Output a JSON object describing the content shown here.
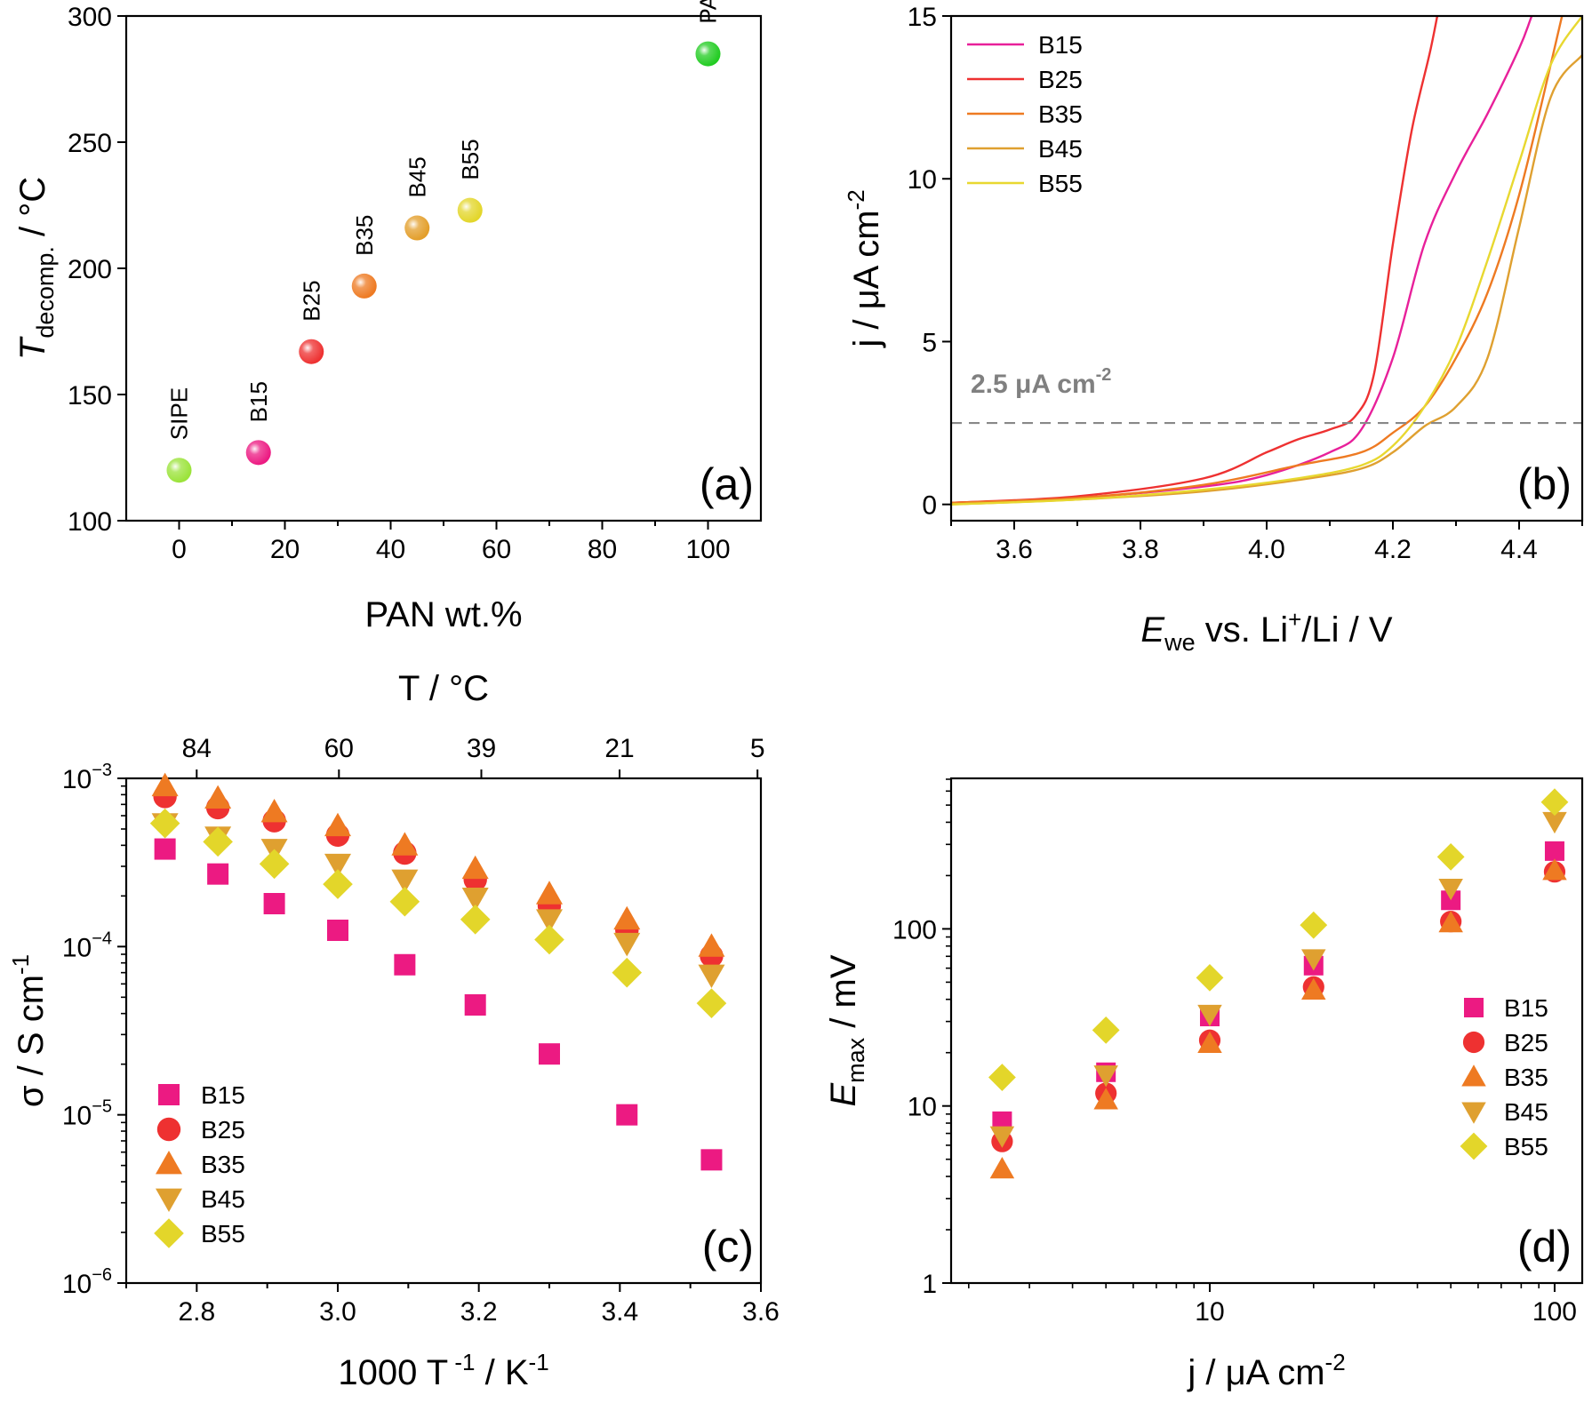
{
  "chart_data": [
    {
      "panel": "(a)",
      "type": "scatter",
      "xlabel": "PAN wt.%",
      "ylabel_main": "T",
      "ylabel_sub": "decomp.",
      "ylabel_tail": " / °C",
      "xlim": [
        -10,
        110
      ],
      "ylim": [
        100,
        300
      ],
      "xticks": [
        0,
        20,
        40,
        60,
        80,
        100
      ],
      "yticks": [
        100,
        150,
        200,
        250,
        300
      ],
      "points": [
        {
          "label": "SIPE",
          "x": 0,
          "y": 120,
          "color": "#9be33a"
        },
        {
          "label": "B15",
          "x": 15,
          "y": 127,
          "color": "#ec1a82"
        },
        {
          "label": "B25",
          "x": 25,
          "y": 167,
          "color": "#ee3131"
        },
        {
          "label": "B35",
          "x": 35,
          "y": 193,
          "color": "#ee7a22"
        },
        {
          "label": "B45",
          "x": 45,
          "y": 216,
          "color": "#e39e2a"
        },
        {
          "label": "B55",
          "x": 55,
          "y": 223,
          "color": "#e3d62a"
        },
        {
          "label": "PAN",
          "x": 100,
          "y": 285,
          "color": "#22cc22"
        }
      ]
    },
    {
      "panel": "(b)",
      "type": "line",
      "xlabel_main": "E",
      "xlabel_sub": "we",
      "xlabel_tail": " vs. Li",
      "xlabel_sup": "+",
      "xlabel_end": "/Li / V",
      "ylabel": "j / μA cm",
      "ylabel_sup": "-2",
      "xlim": [
        3.5,
        4.5
      ],
      "ylim": [
        -0.5,
        15
      ],
      "xticks": [
        3.6,
        3.8,
        4.0,
        4.2,
        4.4
      ],
      "yticks": [
        0,
        5,
        10,
        15
      ],
      "threshold": {
        "value": 2.5,
        "label": "2.5 μA cm",
        "label_sup": "-2"
      },
      "series": [
        {
          "name": "B15",
          "color": "#e8209a",
          "x": [
            3.5,
            3.7,
            3.9,
            4.0,
            4.1,
            4.15,
            4.2,
            4.25,
            4.3,
            4.35,
            4.4,
            4.42,
            4.44
          ],
          "y": [
            0.05,
            0.2,
            0.55,
            0.9,
            1.6,
            2.3,
            4.5,
            8.0,
            10.2,
            12.0,
            14.0,
            15.0,
            16.0
          ]
        },
        {
          "name": "B25",
          "color": "#ee3131",
          "x": [
            3.5,
            3.7,
            3.9,
            4.0,
            4.05,
            4.1,
            4.14,
            4.17,
            4.2,
            4.23,
            4.26,
            4.28
          ],
          "y": [
            0.05,
            0.25,
            0.8,
            1.6,
            2.0,
            2.3,
            2.7,
            4.0,
            8.0,
            11.5,
            14.0,
            16.0
          ]
        },
        {
          "name": "B35",
          "color": "#ee7a22",
          "x": [
            3.5,
            3.7,
            3.9,
            4.05,
            4.15,
            4.2,
            4.25,
            4.3,
            4.35,
            4.4,
            4.45,
            4.48
          ],
          "y": [
            0.05,
            0.2,
            0.6,
            1.2,
            1.6,
            2.2,
            3.0,
            4.5,
            6.5,
            9.5,
            13.5,
            16.0
          ]
        },
        {
          "name": "B45",
          "color": "#dfa030",
          "x": [
            3.5,
            3.7,
            3.9,
            4.05,
            4.15,
            4.2,
            4.25,
            4.3,
            4.35,
            4.4,
            4.45,
            4.5
          ],
          "y": [
            0.0,
            0.15,
            0.4,
            0.75,
            1.1,
            1.6,
            2.4,
            3.0,
            4.5,
            8.5,
            12.5,
            13.8
          ]
        },
        {
          "name": "B55",
          "color": "#e8d830",
          "x": [
            3.5,
            3.7,
            3.9,
            4.05,
            4.15,
            4.2,
            4.25,
            4.3,
            4.35,
            4.4,
            4.45,
            4.5
          ],
          "y": [
            0.0,
            0.15,
            0.45,
            0.8,
            1.2,
            1.8,
            3.0,
            4.8,
            7.5,
            10.5,
            13.5,
            15.0
          ]
        }
      ]
    },
    {
      "panel": "(c)",
      "type": "scatter",
      "xlabel": "1000 T",
      "xlabel_sup1": " -1",
      "xlabel_tail": " / K",
      "xlabel_sup2": "-1",
      "ylabel": "σ / S cm",
      "ylabel_sup": "-1",
      "top_xlabel": "T / °C",
      "top_xticks": [
        84,
        60,
        39,
        21,
        5
      ],
      "xlim": [
        2.7,
        3.6
      ],
      "ylim_log10": [
        -6,
        -3
      ],
      "xticks": [
        2.8,
        3.0,
        3.2,
        3.4,
        3.6
      ],
      "yticks_exp": [
        -6,
        -5,
        -4,
        -3
      ],
      "x": [
        2.755,
        2.83,
        2.91,
        3.0,
        3.095,
        3.195,
        3.3,
        3.41,
        3.53
      ],
      "series": [
        {
          "name": "B15",
          "color": "#ec1a82",
          "marker": "square",
          "values": [
            0.00038,
            0.00027,
            0.00018,
            0.000125,
            7.8e-05,
            4.5e-05,
            2.3e-05,
            1e-05,
            5.4e-06
          ]
        },
        {
          "name": "B25",
          "color": "#ee3131",
          "marker": "circle",
          "values": [
            0.00078,
            0.00067,
            0.00056,
            0.00046,
            0.00036,
            0.00025,
            0.000175,
            0.000125,
            8.8e-05
          ]
        },
        {
          "name": "B35",
          "color": "#ee7a22",
          "marker": "triangle-up",
          "values": [
            0.0009,
            0.00076,
            0.00063,
            0.00052,
            0.0004,
            0.00029,
            0.000205,
            0.000145,
            0.0001
          ]
        },
        {
          "name": "B45",
          "color": "#dfa030",
          "marker": "triangle-down",
          "values": [
            0.00054,
            0.00045,
            0.00038,
            0.00031,
            0.00025,
            0.000195,
            0.000145,
            0.000105,
            6.8e-05
          ]
        },
        {
          "name": "B55",
          "color": "#e3d62a",
          "marker": "diamond",
          "values": [
            0.00054,
            0.00042,
            0.00031,
            0.000235,
            0.000185,
            0.000145,
            0.00011,
            7e-05,
            4.6e-05
          ]
        }
      ]
    },
    {
      "panel": "(d)",
      "type": "scatter",
      "xlabel": "j / μA cm",
      "xlabel_sup": "-2",
      "ylabel_main": "E",
      "ylabel_sub": "max",
      "ylabel_tail": " / mV",
      "xlim_log10": [
        0.25,
        2.08
      ],
      "ylim_log10": [
        0,
        2.85
      ],
      "xticks": [
        10,
        100
      ],
      "yticks": [
        1,
        10,
        100
      ],
      "x": [
        2.5,
        5,
        10,
        20,
        50,
        100
      ],
      "series": [
        {
          "name": "B15",
          "color": "#ec1a82",
          "marker": "square",
          "values": [
            8.2,
            15.5,
            32,
            62,
            145,
            275
          ]
        },
        {
          "name": "B25",
          "color": "#ee3131",
          "marker": "circle",
          "values": [
            6.3,
            11.8,
            23.5,
            47,
            110,
            210
          ]
        },
        {
          "name": "B35",
          "color": "#ee7a22",
          "marker": "triangle-up",
          "values": [
            4.4,
            10.8,
            22.5,
            45,
            108,
            213
          ]
        },
        {
          "name": "B45",
          "color": "#dfa030",
          "marker": "triangle-down",
          "values": [
            6.8,
            15.0,
            33,
            68,
            170,
            405
          ]
        },
        {
          "name": "B55",
          "color": "#e3d62a",
          "marker": "diamond",
          "values": [
            14.5,
            26.8,
            53,
            105,
            255,
            520
          ]
        }
      ]
    }
  ]
}
